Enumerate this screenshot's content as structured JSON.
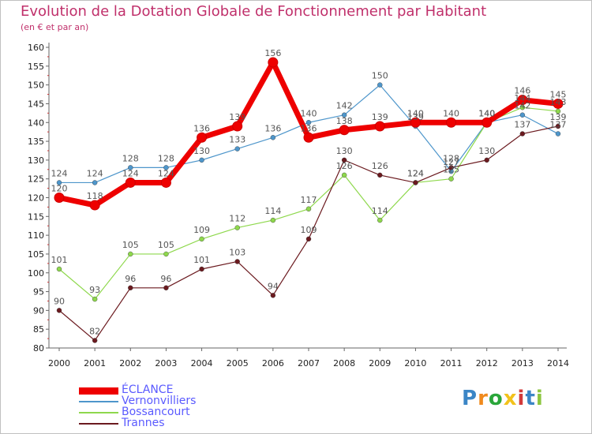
{
  "chart_data": {
    "type": "line",
    "title": "Evolution de la Dotation Globale de Fonctionnement par Habitant",
    "subtitle": "(en € et par an)",
    "xlabel": "",
    "ylabel": "",
    "categories": [
      "2000",
      "2001",
      "2002",
      "2003",
      "2004",
      "2005",
      "2006",
      "2007",
      "2008",
      "2009",
      "2010",
      "2011",
      "2012",
      "2013",
      "2014"
    ],
    "ylim": [
      80,
      160
    ],
    "yticks": [
      80,
      85,
      90,
      95,
      100,
      105,
      110,
      115,
      120,
      125,
      130,
      135,
      140,
      145,
      150,
      155,
      160
    ],
    "grid": false,
    "legend_position": "bottom-left",
    "series": [
      {
        "name": "ÉCLANCE",
        "color": "#ee0000",
        "values": [
          120,
          118,
          124,
          124,
          136,
          139,
          156,
          136,
          138,
          139,
          140,
          140,
          140,
          146,
          145
        ]
      },
      {
        "name": "Vernonvilliers",
        "color": "#4e96cb",
        "values": [
          124,
          124,
          128,
          128,
          130,
          133,
          136,
          140,
          142,
          150,
          139,
          127,
          140,
          142,
          137
        ]
      },
      {
        "name": "Bossancourt",
        "color": "#8ed84c",
        "values": [
          101,
          93,
          105,
          105,
          109,
          112,
          114,
          117,
          126,
          114,
          124,
          125,
          140,
          144,
          143
        ]
      },
      {
        "name": "Trannes",
        "color": "#6b1a1f",
        "values": [
          90,
          82,
          96,
          96,
          101,
          103,
          94,
          109,
          130,
          126,
          124,
          128,
          130,
          137,
          139
        ]
      }
    ]
  },
  "logo": {
    "letters": [
      "P",
      "r",
      "o",
      "x",
      "i",
      "t",
      "i"
    ],
    "colors": [
      "#3b86c6",
      "#f08a1d",
      "#2aa63a",
      "#f2c21b",
      "#d23a3a",
      "#3b86c6",
      "#8cc63f"
    ]
  }
}
